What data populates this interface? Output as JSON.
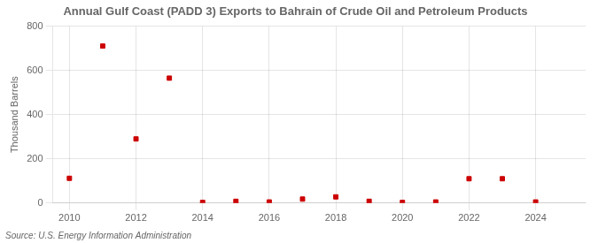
{
  "chart_data": {
    "type": "scatter",
    "title": "Annual Gulf Coast (PADD 3) Exports to Bahrain of Crude Oil and Petroleum Products",
    "y_label": "Thousand Barrels",
    "annotations": [
      "Source: U.S. Energy Information Administration"
    ],
    "x": [
      2010,
      2011,
      2012,
      2013,
      2014,
      2015,
      2016,
      2017,
      2018,
      2019,
      2020,
      2021,
      2022,
      2023,
      2024
    ],
    "values": [
      112,
      710,
      290,
      565,
      3,
      8,
      5,
      18,
      28,
      8,
      3,
      5,
      110,
      110,
      5
    ],
    "color": "#cc0000",
    "marker": "square",
    "xlim": [
      2009.5,
      2025.5
    ],
    "xticks": [
      2010,
      2012,
      2014,
      2016,
      2018,
      2020,
      2022,
      2024
    ],
    "ylim": [
      0,
      800
    ],
    "yticks": [
      0,
      200,
      400,
      600,
      800
    ],
    "grid": true
  }
}
